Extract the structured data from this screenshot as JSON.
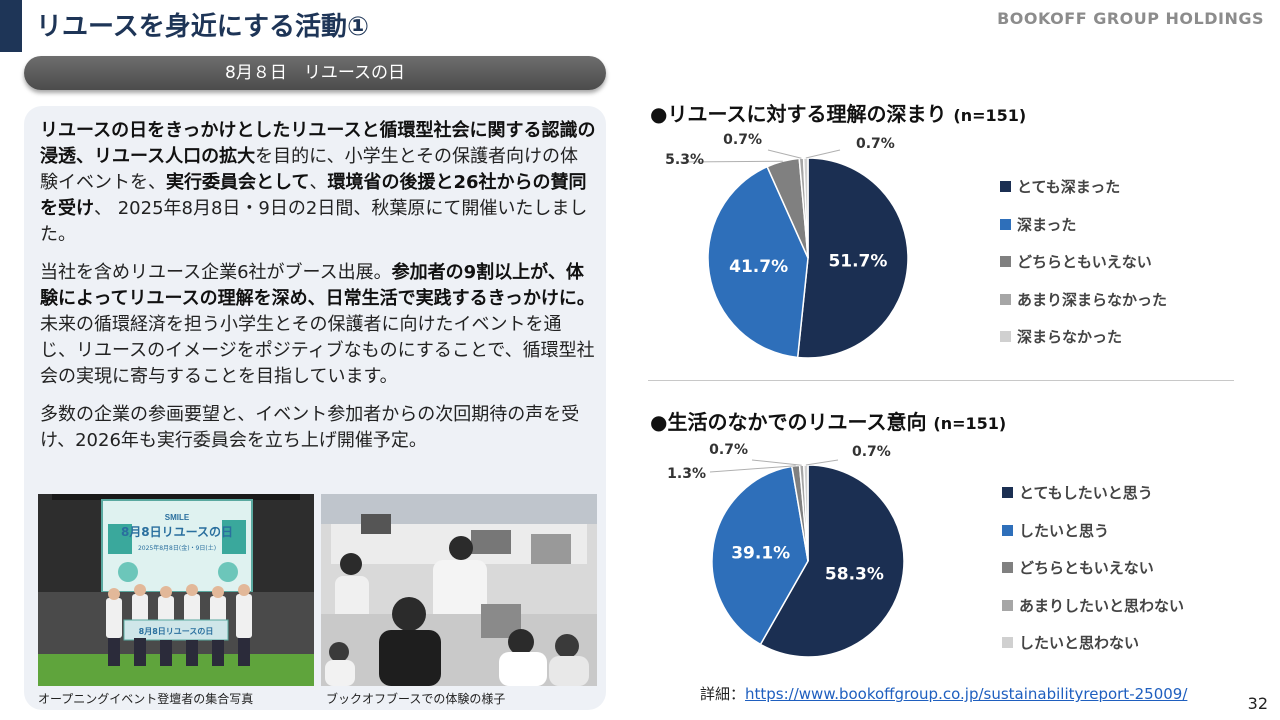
{
  "header": {
    "title": "リユースを身近にする活動①",
    "brand": "BOOKOFF GROUP HOLDINGS"
  },
  "subheader": "8月８日　リユースの日",
  "body": {
    "para1": [
      {
        "t": "リユースの日をきっかけとしたリユースと循環型社会に関する認識の浸透、リユース人口の拡大",
        "b": true
      },
      {
        "t": "を目的に、小学生とその保護者向けの体験イベントを、",
        "b": false
      },
      {
        "t": "実行委員会として",
        "b": true
      },
      {
        "t": "、",
        "b": false
      },
      {
        "t": "環境省の後援と26社からの賛同を受け",
        "b": true
      },
      {
        "t": "、 2025年8月8日・9日の2日間、秋葉原にて開催いたしました。",
        "b": false
      }
    ],
    "para2": [
      {
        "t": "当社を含めリユース企業6社がブース出展。",
        "b": false
      },
      {
        "t": "参加者の9割以上が、体験によってリユースの理解を深め、日常生活で実践するきっかけに。",
        "b": true
      },
      {
        "t": "未来の循環経済を担う小学生とその保護者に向けたイベントを通じ、リユースのイメージをポジティブなものにすることで、循環型社会の実現に寄与することを目指しています。",
        "b": false
      }
    ],
    "para3": [
      {
        "t": "多数の企業の参画要望と、イベント参加者からの次回期待の声を受け、2026年も実行委員会を立ち上げ開催予定。",
        "b": false
      }
    ]
  },
  "photos": {
    "photo1_caption": "オープニングイベント登壇者の集合写真",
    "photo2_caption": "ブックオフブースでの体験の様子",
    "banner_smile": "SMILE",
    "banner_main": "8月8日リユースの日",
    "banner_sub": "2025年8月8日(金)・9日(土)",
    "sign_text": "8月8日リユースの日"
  },
  "chart_data": [
    {
      "type": "pie",
      "title": "●リユースに対する理解の深まり",
      "n_label": "(n=151)",
      "labels": [
        "とても深まった",
        "深まった",
        "どちらともいえない",
        "あまり深まらなかった",
        "深まらなかった"
      ],
      "values": [
        51.7,
        41.7,
        5.3,
        0.7,
        0.7
      ],
      "value_labels": [
        "51.7%",
        "41.7%",
        "5.3%",
        "0.7%",
        "0.7%"
      ],
      "colors": [
        "#1b2f52",
        "#2e6fba",
        "#808080",
        "#a6a6a6",
        "#d0d0d0"
      ],
      "legend_position": "right"
    },
    {
      "type": "pie",
      "title": "●生活のなかでのリユース意向",
      "n_label": "(n=151)",
      "labels": [
        "とてもしたいと思う",
        "したいと思う",
        "どちらともいえない",
        "あまりしたいと思わない",
        "したいと思わない"
      ],
      "values": [
        58.3,
        39.1,
        1.3,
        0.7,
        0.7
      ],
      "value_labels": [
        "58.3%",
        "39.1%",
        "1.3%",
        "0.7%",
        "0.7%"
      ],
      "colors": [
        "#1b2f52",
        "#2e6fba",
        "#808080",
        "#a6a6a6",
        "#d0d0d0"
      ],
      "legend_position": "right"
    }
  ],
  "footer": {
    "detail_label": "詳細：",
    "detail_url": "https://www.bookoffgroup.co.jp/sustainabilityreport-25009/",
    "page_number": "32"
  }
}
